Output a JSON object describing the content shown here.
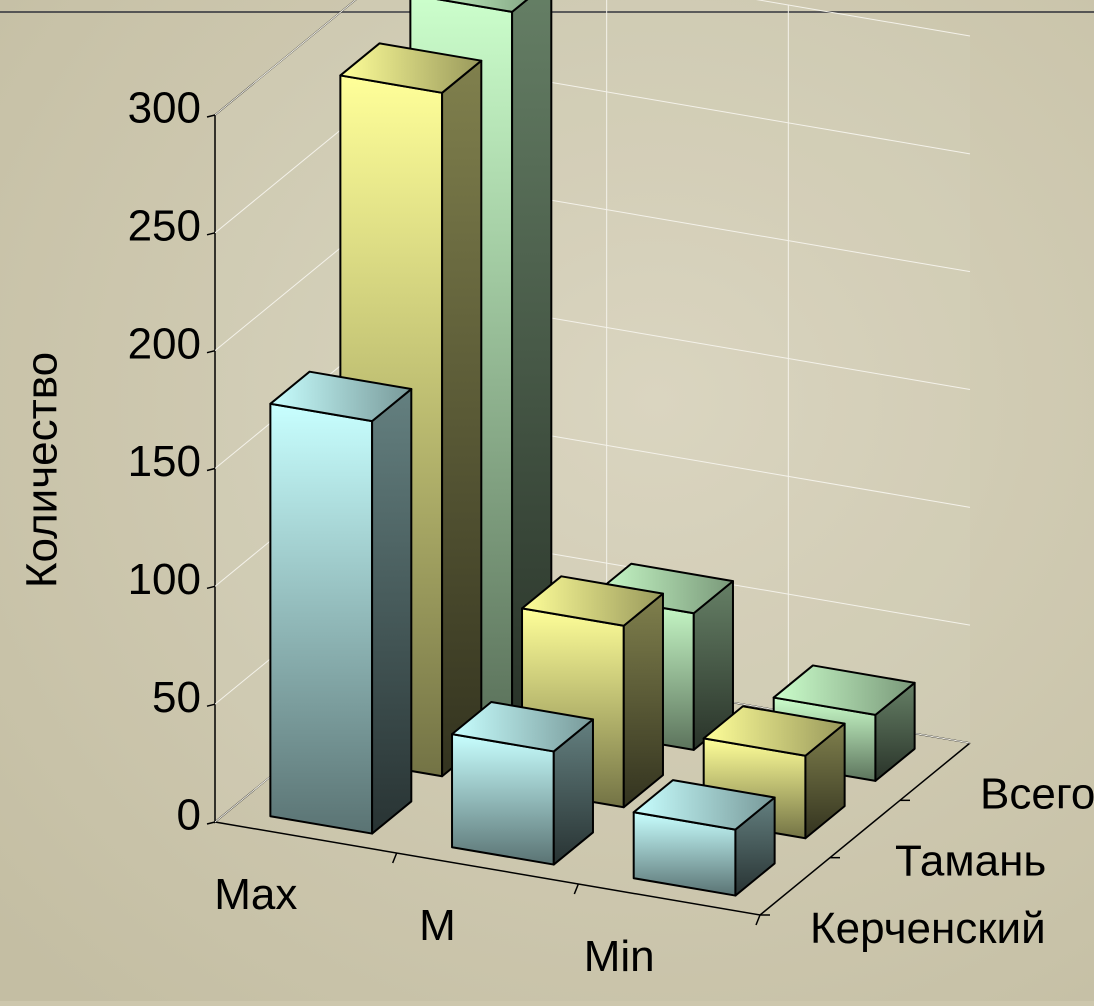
{
  "chart_data": {
    "type": "bar3d",
    "y_label": "Количество",
    "categories": [
      "Max",
      "M",
      "Min"
    ],
    "series": [
      {
        "name": "Керченский",
        "color": "#c8ffff",
        "values": [
          175,
          48,
          28
        ]
      },
      {
        "name": "Тамань",
        "color": "#ffff99",
        "values": [
          290,
          77,
          35
        ]
      },
      {
        "name": "Всего",
        "color": "#ccffcc",
        "values": [
          300,
          58,
          28
        ]
      }
    ],
    "ylim": [
      0,
      300
    ],
    "yticks": [
      0,
      50,
      100,
      150,
      200,
      250,
      300
    ],
    "grid": true
  }
}
